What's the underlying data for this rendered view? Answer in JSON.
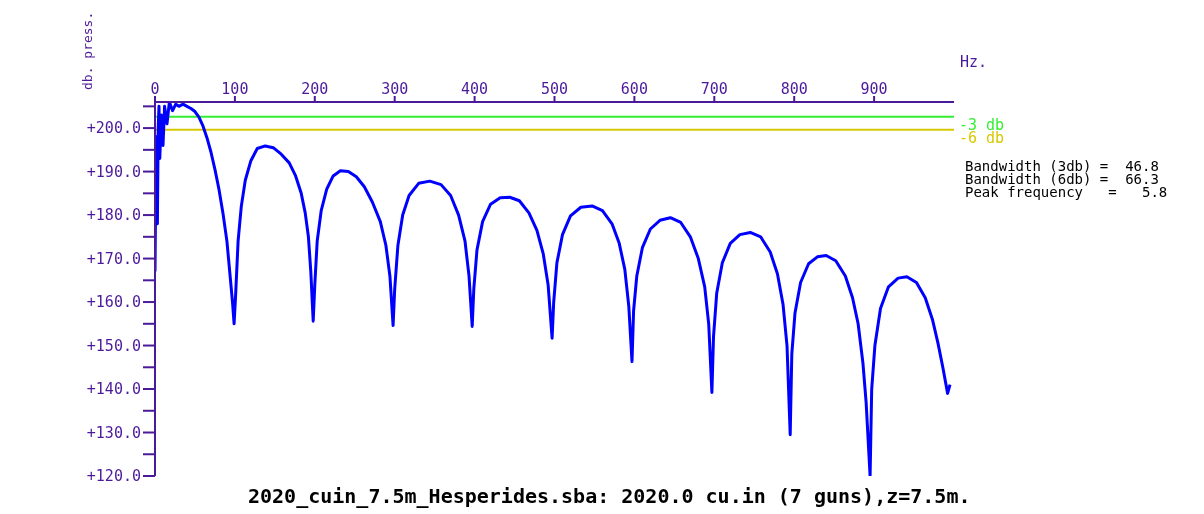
{
  "chart_data": {
    "type": "line",
    "title": "2020_cuin_7.5m_Hesperides.sba: 2020.0 cu.in (7 guns),z=7.5m.",
    "xlabel": "Hz.",
    "ylabel": "db. press.",
    "x": [
      0,
      1,
      2,
      3,
      4,
      5,
      6,
      8,
      10,
      12,
      15,
      18,
      22,
      26,
      30,
      35,
      40,
      45,
      50,
      55,
      60,
      65,
      70,
      75,
      80,
      85,
      90,
      94,
      97,
      99,
      101,
      104,
      108,
      113,
      120,
      128,
      138,
      148,
      158,
      168,
      176,
      183,
      188,
      192,
      195,
      198,
      200,
      203,
      208,
      215,
      223,
      232,
      242,
      252,
      262,
      272,
      282,
      289,
      294,
      298,
      300,
      304,
      310,
      318,
      330,
      344,
      358,
      370,
      380,
      388,
      393,
      397,
      399,
      403,
      410,
      420,
      432,
      444,
      456,
      468,
      478,
      486,
      492,
      497,
      499,
      503,
      510,
      520,
      533,
      547,
      560,
      572,
      581,
      588,
      593,
      597,
      599,
      603,
      610,
      620,
      632,
      645,
      658,
      670,
      680,
      688,
      693,
      697,
      699,
      703,
      710,
      720,
      732,
      745,
      758,
      770,
      779,
      786,
      791,
      795,
      797,
      801,
      808,
      818,
      829,
      840,
      852,
      864,
      873,
      880,
      886,
      890,
      895,
      897,
      901,
      908,
      918,
      930,
      941,
      953,
      964,
      973,
      980,
      986,
      992,
      995
    ],
    "series": [
      {
        "color": "#0000ff",
        "values": [
          167,
          188,
          198,
          178,
          200,
          205,
          193,
          203,
          196,
          205,
          201,
          206,
          204,
          205.5,
          205,
          205.5,
          205,
          204.5,
          203.8,
          202.5,
          200.5,
          197.8,
          194.5,
          190.5,
          186,
          180.5,
          174,
          166,
          160,
          155,
          162,
          174,
          182,
          188,
          192.5,
          195.3,
          195.9,
          195.5,
          194,
          192,
          189,
          185,
          180.5,
          175,
          167,
          155.6,
          164,
          174,
          181,
          186,
          189,
          190.2,
          190,
          188.8,
          186.5,
          183,
          178.5,
          173,
          166,
          154.6,
          163,
          173,
          180,
          184.5,
          187.3,
          187.8,
          187,
          184.5,
          180,
          174,
          166,
          154.4,
          163,
          172,
          178.5,
          182.5,
          184,
          184.1,
          183.3,
          180.5,
          176.5,
          171,
          164,
          151.7,
          160,
          169,
          175.5,
          179.8,
          181.8,
          182.1,
          181,
          178,
          173.5,
          167.5,
          159,
          146.3,
          158,
          166,
          172.5,
          176.8,
          178.8,
          179.4,
          178.3,
          175,
          170,
          163.5,
          155,
          139.2,
          152,
          162,
          169,
          173.5,
          175.5,
          176,
          175,
          171.5,
          166.5,
          159.5,
          150,
          129.5,
          148,
          157.5,
          164.5,
          168.8,
          170.4,
          170.7,
          169.5,
          166,
          161,
          155,
          146,
          137,
          120,
          140,
          150,
          158.5,
          163.5,
          165.5,
          165.8,
          164.5,
          161,
          156,
          150.5,
          145,
          139,
          141
        ]
      }
    ],
    "xlim": [
      0,
      1000
    ],
    "xticks": [
      0,
      100,
      200,
      300,
      400,
      500,
      600,
      700,
      800,
      900
    ],
    "ylim": [
      120,
      206
    ],
    "yticks": [
      {
        "value": 120,
        "label": "+120.0"
      },
      {
        "value": 125,
        "label": null
      },
      {
        "value": 130,
        "label": "+130.0"
      },
      {
        "value": 135,
        "label": null
      },
      {
        "value": 140,
        "label": "+140.0"
      },
      {
        "value": 145,
        "label": null
      },
      {
        "value": 150,
        "label": "+150.0"
      },
      {
        "value": 155,
        "label": null
      },
      {
        "value": 160,
        "label": "+160.0"
      },
      {
        "value": 165,
        "label": null
      },
      {
        "value": 170,
        "label": "+170.0"
      },
      {
        "value": 175,
        "label": null
      },
      {
        "value": 180,
        "label": "+180.0"
      },
      {
        "value": 185,
        "label": null
      },
      {
        "value": 190,
        "label": "+190.0"
      },
      {
        "value": 195,
        "label": null
      },
      {
        "value": 200,
        "label": "+200.0"
      },
      {
        "value": 205,
        "label": null
      }
    ],
    "ref_lines": [
      {
        "axis": "y",
        "value": 202.6,
        "label": "-3 db",
        "color": "#33ee33"
      },
      {
        "axis": "y",
        "value": 199.6,
        "label": "-6 db",
        "color": "#d8c800"
      }
    ],
    "annotations": [
      "Bandwidth (3db) =  46.8",
      "Bandwidth (6db) =  66.3",
      "Peak frequency   =   5.8"
    ],
    "grid": false,
    "legend": false,
    "marker": "none",
    "line_style": "solid"
  }
}
